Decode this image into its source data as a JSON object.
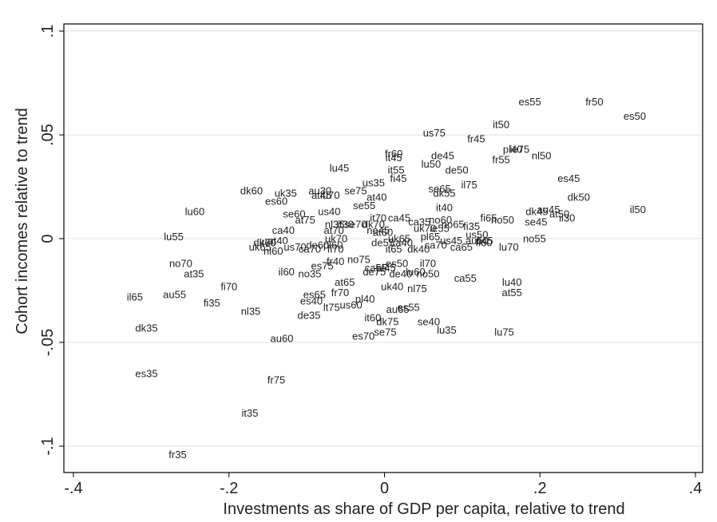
{
  "chart_data": {
    "type": "scatter",
    "xlabel": "Investments as share of GDP per capita, relative to trend",
    "ylabel": "Cohort incomes relative to trend",
    "xlim": [
      -0.4,
      0.4
    ],
    "ylim": [
      -0.105,
      0.105
    ],
    "xticks": [
      -0.4,
      -0.2,
      0,
      0.2,
      0.4
    ],
    "xtick_labels": [
      "-.4",
      "-.2",
      "0",
      ".2",
      ".4"
    ],
    "yticks": [
      -0.1,
      -0.05,
      0,
      0.05,
      0.1
    ],
    "ytick_labels": [
      "-.1",
      "-.05",
      "0",
      ".05",
      ".1"
    ],
    "grid": "horizontal",
    "marker": "label only",
    "points": [
      {
        "label": "es55",
        "x": 0.187,
        "y": 0.066
      },
      {
        "label": "fr50",
        "x": 0.27,
        "y": 0.066
      },
      {
        "label": "es50",
        "x": 0.322,
        "y": 0.059
      },
      {
        "label": "it50",
        "x": 0.15,
        "y": 0.055
      },
      {
        "label": "us75",
        "x": 0.064,
        "y": 0.051
      },
      {
        "label": "fr45",
        "x": 0.118,
        "y": 0.048
      },
      {
        "label": "pl40",
        "x": 0.165,
        "y": 0.043
      },
      {
        "label": "ie75",
        "x": 0.174,
        "y": 0.043
      },
      {
        "label": "nl50",
        "x": 0.202,
        "y": 0.04
      },
      {
        "label": "fr60",
        "x": 0.012,
        "y": 0.041
      },
      {
        "label": "it45",
        "x": 0.012,
        "y": 0.039
      },
      {
        "label": "de45",
        "x": 0.075,
        "y": 0.04
      },
      {
        "label": "fr55",
        "x": 0.15,
        "y": 0.038
      },
      {
        "label": "lu50",
        "x": 0.06,
        "y": 0.036
      },
      {
        "label": "de50",
        "x": 0.093,
        "y": 0.033
      },
      {
        "label": "lu45",
        "x": -0.058,
        "y": 0.034
      },
      {
        "label": "it55",
        "x": 0.015,
        "y": 0.033
      },
      {
        "label": "fi45",
        "x": 0.018,
        "y": 0.029
      },
      {
        "label": "es45",
        "x": 0.237,
        "y": 0.029
      },
      {
        "label": "us35",
        "x": -0.014,
        "y": 0.027
      },
      {
        "label": "il75",
        "x": 0.109,
        "y": 0.026
      },
      {
        "label": "se65",
        "x": 0.071,
        "y": 0.024
      },
      {
        "label": "dk55",
        "x": 0.077,
        "y": 0.022
      },
      {
        "label": "dk60",
        "x": -0.171,
        "y": 0.023
      },
      {
        "label": "uk35",
        "x": -0.127,
        "y": 0.022
      },
      {
        "label": "au30",
        "x": -0.083,
        "y": 0.023
      },
      {
        "label": "se75",
        "x": -0.037,
        "y": 0.023
      },
      {
        "label": "at45",
        "x": -0.081,
        "y": 0.021
      },
      {
        "label": "lu70",
        "x": -0.07,
        "y": 0.021
      },
      {
        "label": "at40",
        "x": -0.01,
        "y": 0.02
      },
      {
        "label": "dk50",
        "x": 0.25,
        "y": 0.02
      },
      {
        "label": "es60",
        "x": -0.139,
        "y": 0.018
      },
      {
        "label": "se55",
        "x": -0.026,
        "y": 0.016
      },
      {
        "label": "it40",
        "x": 0.077,
        "y": 0.015
      },
      {
        "label": "dk45",
        "x": 0.196,
        "y": 0.013
      },
      {
        "label": "au45",
        "x": 0.211,
        "y": 0.014
      },
      {
        "label": "at50",
        "x": 0.225,
        "y": 0.012
      },
      {
        "label": "il50",
        "x": 0.326,
        "y": 0.014
      },
      {
        "label": "lu60",
        "x": -0.244,
        "y": 0.013
      },
      {
        "label": "se60",
        "x": -0.116,
        "y": 0.012
      },
      {
        "label": "us40",
        "x": -0.071,
        "y": 0.013
      },
      {
        "label": "il30",
        "x": 0.235,
        "y": 0.01
      },
      {
        "label": "at75",
        "x": -0.102,
        "y": 0.009
      },
      {
        "label": "fi65",
        "x": 0.134,
        "y": 0.01
      },
      {
        "label": "no50",
        "x": 0.152,
        "y": 0.009
      },
      {
        "label": "se45",
        "x": 0.195,
        "y": 0.008
      },
      {
        "label": "it70",
        "x": -0.008,
        "y": 0.01
      },
      {
        "label": "ca45",
        "x": 0.019,
        "y": 0.01
      },
      {
        "label": "ca35",
        "x": 0.045,
        "y": 0.008
      },
      {
        "label": "no60",
        "x": 0.072,
        "y": 0.009
      },
      {
        "label": "nl35",
        "x": -0.064,
        "y": 0.007
      },
      {
        "label": "it30",
        "x": -0.05,
        "y": 0.007
      },
      {
        "label": "se70",
        "x": -0.037,
        "y": 0.007
      },
      {
        "label": "dk70",
        "x": -0.014,
        "y": 0.007
      },
      {
        "label": "no65",
        "x": 0.088,
        "y": 0.007
      },
      {
        "label": "fi35",
        "x": 0.112,
        "y": 0.006
      },
      {
        "label": "no45",
        "x": -0.008,
        "y": 0.004
      },
      {
        "label": "uk70",
        "x": 0.052,
        "y": 0.005
      },
      {
        "label": "ie55",
        "x": 0.071,
        "y": 0.005
      },
      {
        "label": "at70",
        "x": -0.065,
        "y": 0.004
      },
      {
        "label": "at60",
        "x": -0.002,
        "y": 0.003
      },
      {
        "label": "us50",
        "x": 0.119,
        "y": 0.002
      },
      {
        "label": "ca40",
        "x": -0.13,
        "y": 0.004
      },
      {
        "label": "lu55",
        "x": -0.271,
        "y": 0.001
      },
      {
        "label": "uk70",
        "x": -0.062,
        "y": 0.0
      },
      {
        "label": "uk65",
        "x": 0.019,
        "y": 0.0
      },
      {
        "label": "pl65",
        "x": 0.059,
        "y": 0.001
      },
      {
        "label": "us45",
        "x": 0.086,
        "y": -0.001
      },
      {
        "label": "au50",
        "x": 0.119,
        "y": -0.001
      },
      {
        "label": "fi45",
        "x": 0.129,
        "y": -0.001
      },
      {
        "label": "no55",
        "x": 0.193,
        "y": 0.0
      },
      {
        "label": "at40",
        "x": -0.137,
        "y": -0.001
      },
      {
        "label": "de55",
        "x": -0.002,
        "y": -0.002
      },
      {
        "label": "ca40",
        "x": 0.022,
        "y": -0.002
      },
      {
        "label": "fi60",
        "x": 0.128,
        "y": -0.002
      },
      {
        "label": "dk70",
        "x": -0.154,
        "y": -0.002
      },
      {
        "label": "it60",
        "x": -0.15,
        "y": -0.002
      },
      {
        "label": "ca70",
        "x": 0.066,
        "y": -0.003
      },
      {
        "label": "ca65",
        "x": 0.099,
        "y": -0.004
      },
      {
        "label": "lu70",
        "x": 0.16,
        "y": -0.004
      },
      {
        "label": "uk65",
        "x": -0.16,
        "y": -0.004
      },
      {
        "label": "us70",
        "x": -0.115,
        "y": -0.004
      },
      {
        "label": "de60",
        "x": -0.086,
        "y": -0.003
      },
      {
        "label": "pl60",
        "x": -0.066,
        "y": -0.003
      },
      {
        "label": "ca70",
        "x": -0.096,
        "y": -0.005
      },
      {
        "label": "fi70",
        "x": -0.063,
        "y": -0.005
      },
      {
        "label": "it65",
        "x": 0.012,
        "y": -0.005
      },
      {
        "label": "dk40",
        "x": 0.044,
        "y": -0.005
      },
      {
        "label": "nl60",
        "x": -0.143,
        "y": -0.006
      },
      {
        "label": "fr40",
        "x": -0.063,
        "y": -0.011
      },
      {
        "label": "no75",
        "x": -0.033,
        "y": -0.01
      },
      {
        "label": "es50",
        "x": 0.016,
        "y": -0.012
      },
      {
        "label": "il70",
        "x": 0.056,
        "y": -0.012
      },
      {
        "label": "no70",
        "x": -0.262,
        "y": -0.012
      },
      {
        "label": "es75",
        "x": -0.08,
        "y": -0.013
      },
      {
        "label": "ca55",
        "x": -0.011,
        "y": -0.014
      },
      {
        "label": "pl45",
        "x": 0.002,
        "y": -0.014
      },
      {
        "label": "de75",
        "x": -0.013,
        "y": -0.016
      },
      {
        "label": "de40",
        "x": 0.021,
        "y": -0.017
      },
      {
        "label": "lu60",
        "x": 0.04,
        "y": -0.016
      },
      {
        "label": "no50",
        "x": 0.056,
        "y": -0.017
      },
      {
        "label": "at35",
        "x": -0.245,
        "y": -0.017
      },
      {
        "label": "il60",
        "x": -0.126,
        "y": -0.016
      },
      {
        "label": "no35",
        "x": -0.096,
        "y": -0.017
      },
      {
        "label": "ca55",
        "x": 0.104,
        "y": -0.019
      },
      {
        "label": "at65",
        "x": -0.051,
        "y": -0.021
      },
      {
        "label": "uk40",
        "x": 0.01,
        "y": -0.023
      },
      {
        "label": "nl75",
        "x": 0.042,
        "y": -0.024
      },
      {
        "label": "lu40",
        "x": 0.164,
        "y": -0.021
      },
      {
        "label": "fi70",
        "x": -0.2,
        "y": -0.023
      },
      {
        "label": "fr70",
        "x": -0.057,
        "y": -0.026
      },
      {
        "label": "at55",
        "x": 0.164,
        "y": -0.026
      },
      {
        "label": "il65",
        "x": -0.321,
        "y": -0.028
      },
      {
        "label": "au55",
        "x": -0.27,
        "y": -0.027
      },
      {
        "label": "es65",
        "x": -0.09,
        "y": -0.027
      },
      {
        "label": "pl40",
        "x": -0.025,
        "y": -0.029
      },
      {
        "label": "es40",
        "x": -0.094,
        "y": -0.03
      },
      {
        "label": "us60",
        "x": -0.043,
        "y": -0.032
      },
      {
        "label": "fi35",
        "x": -0.222,
        "y": -0.031
      },
      {
        "label": "lt75",
        "x": -0.068,
        "y": -0.033
      },
      {
        "label": "au65",
        "x": 0.017,
        "y": -0.034
      },
      {
        "label": "es55",
        "x": 0.031,
        "y": -0.033
      },
      {
        "label": "nl35",
        "x": -0.172,
        "y": -0.035
      },
      {
        "label": "de35",
        "x": -0.097,
        "y": -0.037
      },
      {
        "label": "it60",
        "x": -0.015,
        "y": -0.038
      },
      {
        "label": "dk75",
        "x": 0.004,
        "y": -0.04
      },
      {
        "label": "se40",
        "x": 0.057,
        "y": -0.04
      },
      {
        "label": "dk35",
        "x": -0.306,
        "y": -0.043
      },
      {
        "label": "lu35",
        "x": 0.08,
        "y": -0.044
      },
      {
        "label": "lu75",
        "x": 0.154,
        "y": -0.045
      },
      {
        "label": "se75",
        "x": 0.001,
        "y": -0.045
      },
      {
        "label": "es70",
        "x": -0.027,
        "y": -0.047
      },
      {
        "label": "au60",
        "x": -0.132,
        "y": -0.048
      },
      {
        "label": "es35",
        "x": -0.306,
        "y": -0.065
      },
      {
        "label": "fr75",
        "x": -0.139,
        "y": -0.068
      },
      {
        "label": "it35",
        "x": -0.173,
        "y": -0.084
      },
      {
        "label": "fr35",
        "x": -0.266,
        "y": -0.104
      }
    ]
  }
}
